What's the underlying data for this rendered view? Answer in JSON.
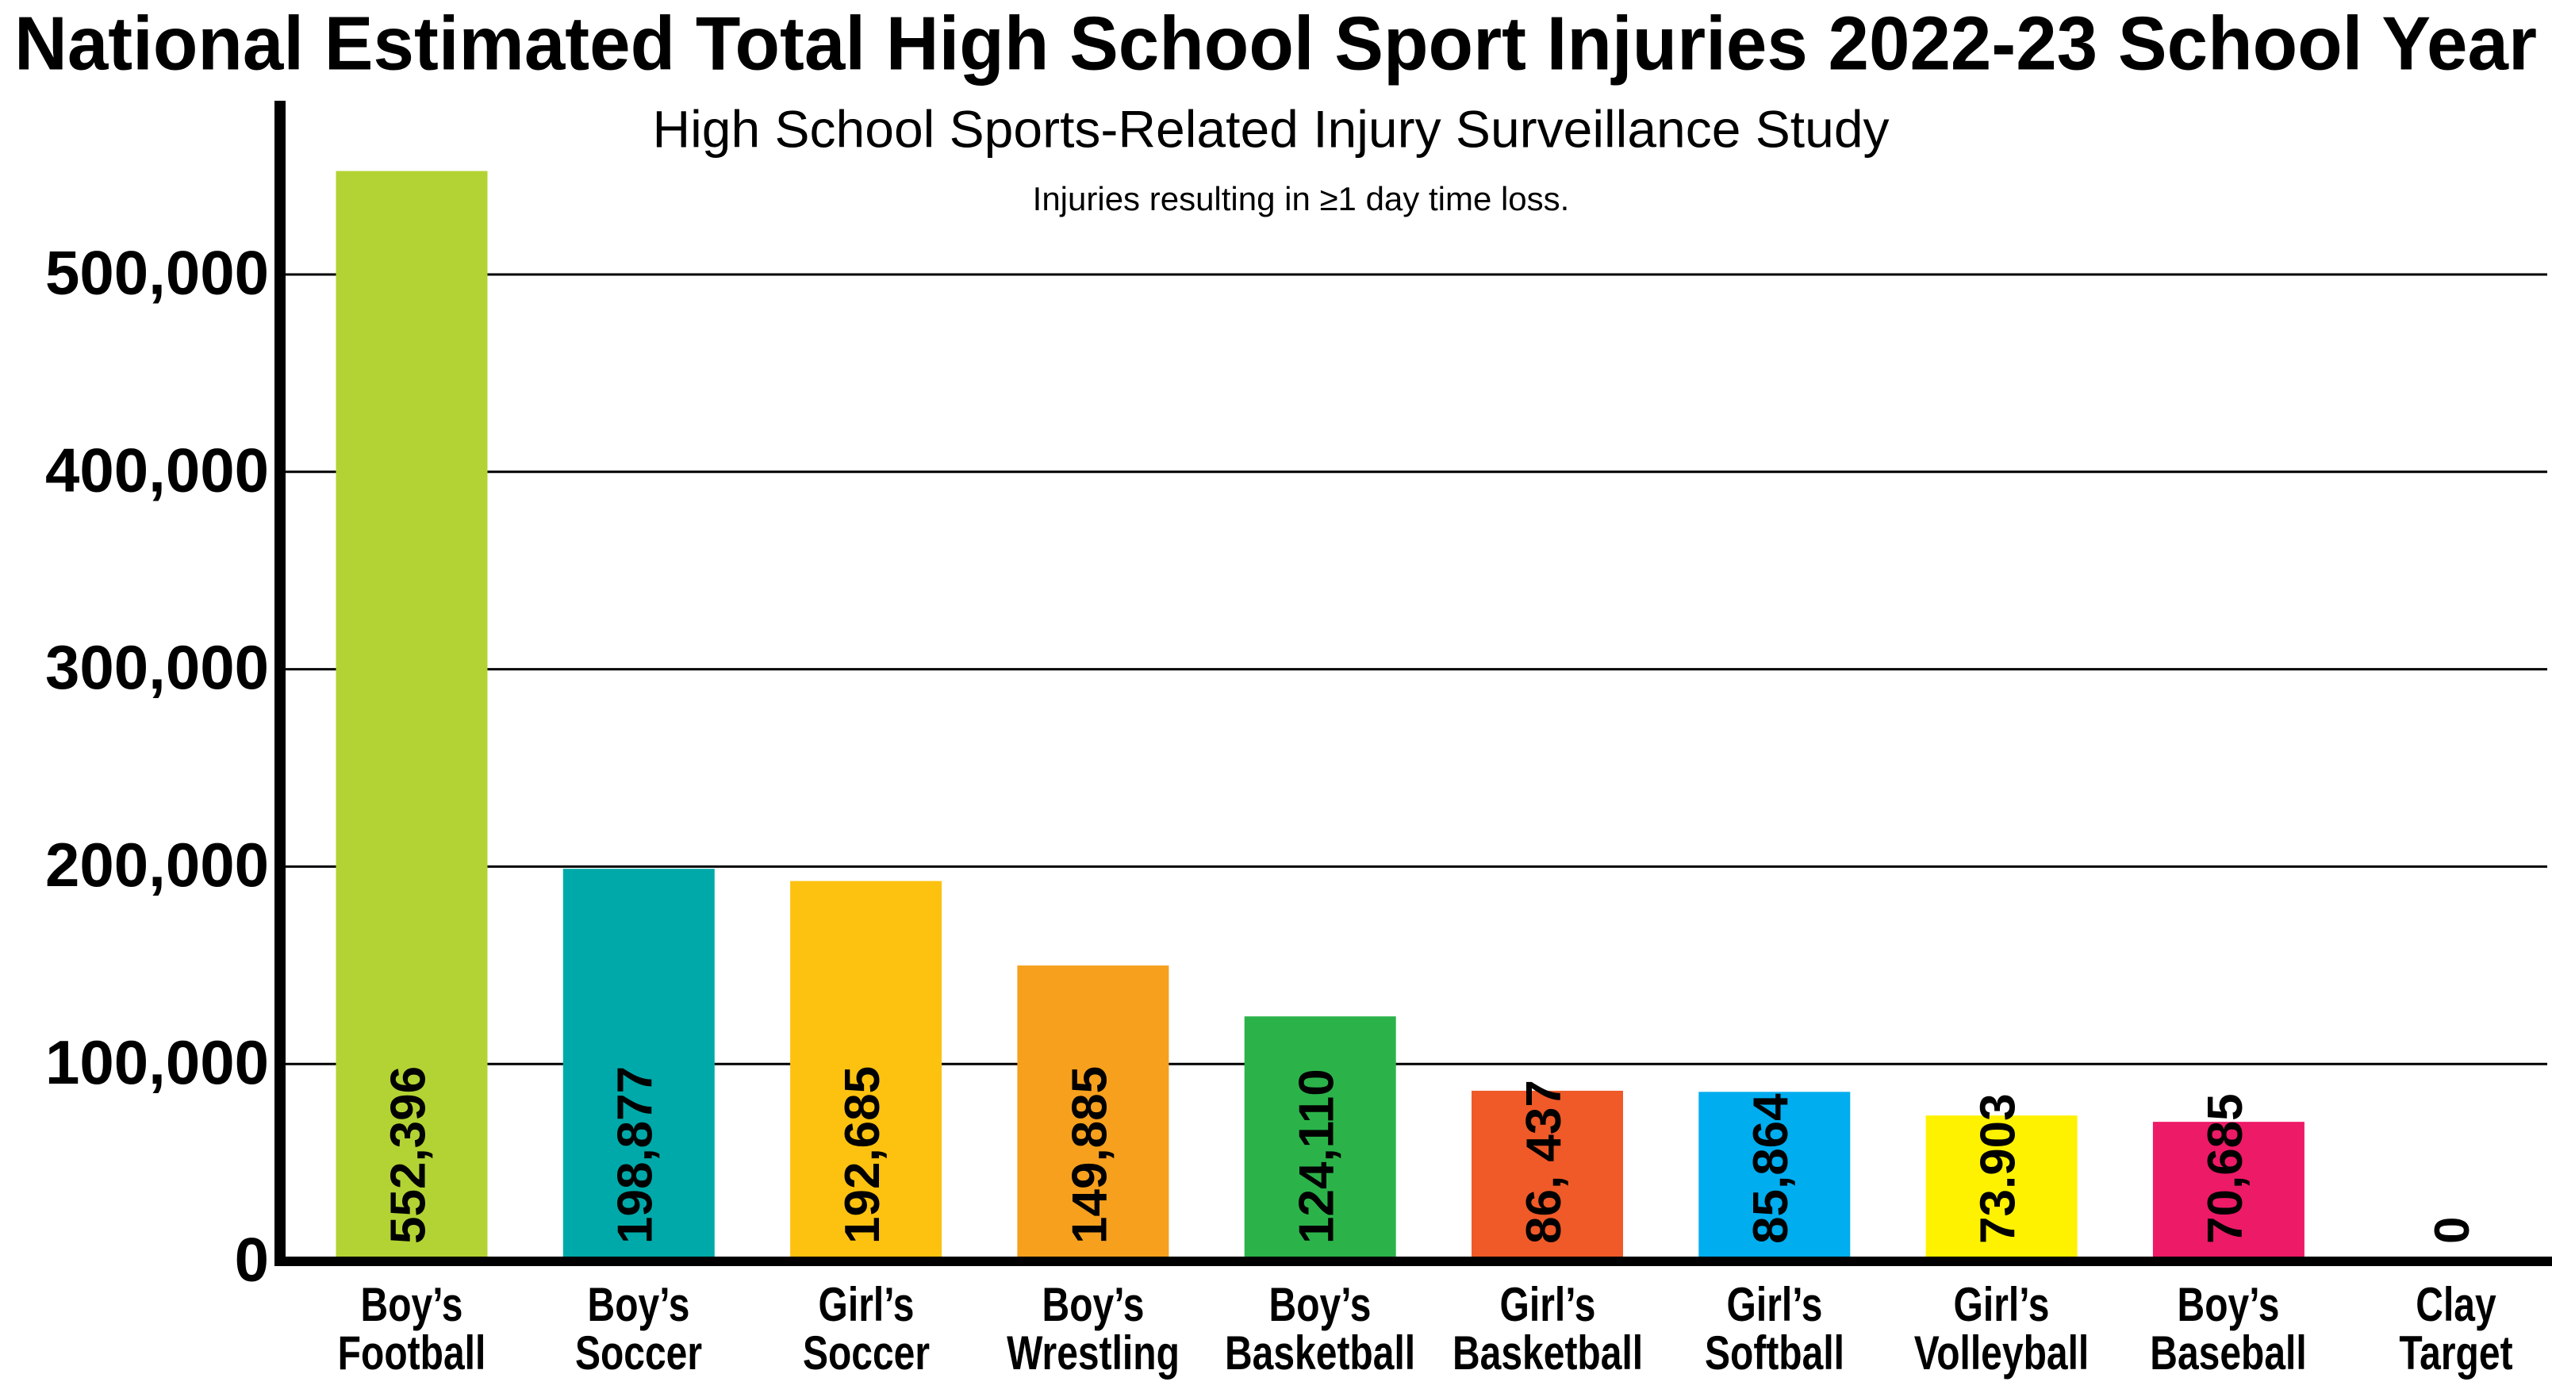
{
  "chart_data": {
    "type": "bar",
    "title": "National Estimated Total High School Sport Injuries 2022-23 School Year",
    "subtitle": "High School Sports-Related Injury Surveillance Study",
    "note": "Injuries resulting in ≥1 day time loss.",
    "categories": [
      "Boy’s\nFootball",
      "Boy’s\nSoccer",
      "Girl’s\nSoccer",
      "Boy’s\nWrestling",
      "Boy’s\nBasketball",
      "Girl’s\nBasketball",
      "Girl’s\nSoftball",
      "Girl’s\nVolleyball",
      "Boy’s\nBaseball",
      "Clay\nTarget"
    ],
    "values": [
      552396,
      198877,
      192685,
      149885,
      124110,
      86437,
      85864,
      73903,
      70685,
      0
    ],
    "value_labels": [
      "552,396",
      "198,877",
      "192,685",
      "149,885",
      "124,110",
      "86, 437",
      "85,864",
      "73.903",
      "70,685",
      "0"
    ],
    "colors": [
      "#b3d334",
      "#00a9a9",
      "#fdc210",
      "#f6a01e",
      "#2bb34a",
      "#ef5a28",
      "#00adef",
      "#fff200",
      "#ec1a67",
      "#999999"
    ],
    "ylim": [
      0,
      588000
    ],
    "yticks": [
      0,
      {
        "value": 100000,
        "label": "100,000"
      },
      {
        "value": 200000,
        "label": "200,000"
      },
      {
        "value": 300000,
        "label": "300,000"
      },
      {
        "value": 400000,
        "label": "400,000"
      },
      {
        "value": 500000,
        "label": "500,000"
      }
    ],
    "grid": true
  }
}
